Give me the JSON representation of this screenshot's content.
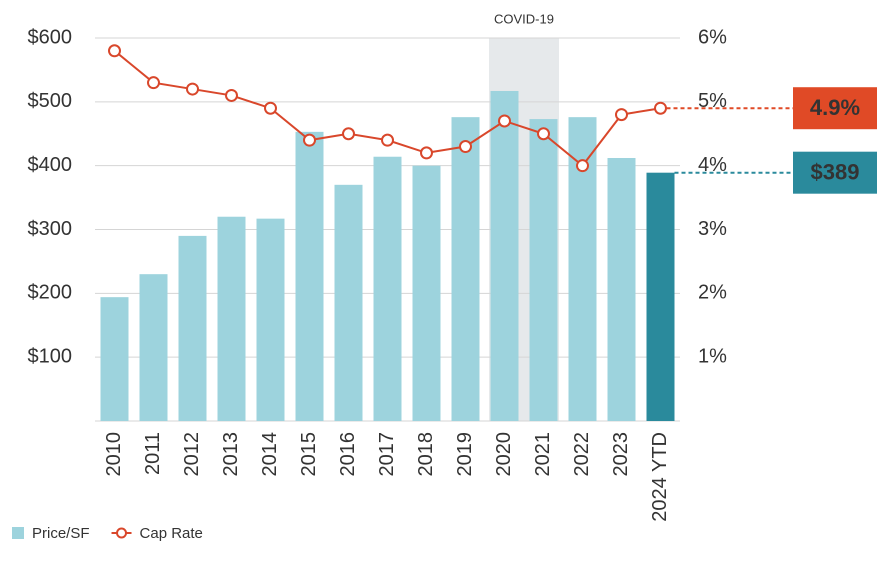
{
  "chart_data": {
    "type": "bar",
    "categories": [
      "2010",
      "2011",
      "2012",
      "2013",
      "2014",
      "2015",
      "2016",
      "2017",
      "2018",
      "2019",
      "2020",
      "2021",
      "2022",
      "2023",
      "2024 YTD"
    ],
    "series": [
      {
        "name": "Price/SF",
        "type": "bar",
        "axis": "y",
        "color": "#9dd3dd",
        "highlight_color": "#2a8a9c",
        "values": [
          194,
          230,
          290,
          320,
          317,
          453,
          370,
          414,
          400,
          476,
          517,
          473,
          476,
          412,
          389
        ],
        "value_labels": [
          null,
          null,
          null,
          null,
          null,
          null,
          null,
          null,
          null,
          null,
          null,
          null,
          null,
          null,
          "$389"
        ]
      },
      {
        "name": "Cap Rate",
        "type": "line",
        "axis": "y2",
        "color": "#d9472b",
        "label_color": "#e04a26",
        "values": [
          5.8,
          5.3,
          5.2,
          5.1,
          4.9,
          4.4,
          4.5,
          4.4,
          4.2,
          4.3,
          4.7,
          4.5,
          4.0,
          4.8,
          4.9
        ],
        "value_labels": [
          null,
          null,
          null,
          null,
          null,
          null,
          null,
          null,
          null,
          null,
          null,
          null,
          null,
          null,
          "4.9%"
        ]
      }
    ],
    "ylim": [
      0,
      600
    ],
    "yticks": [
      {
        "value": 100,
        "label": "$100"
      },
      {
        "value": 200,
        "label": "$200"
      },
      {
        "value": 300,
        "label": "$300"
      },
      {
        "value": 400,
        "label": "$400"
      },
      {
        "value": 500,
        "label": "$500"
      },
      {
        "value": 600,
        "label": "$600"
      }
    ],
    "y2lim": [
      0,
      6
    ],
    "y2ticks": [
      {
        "value": 1,
        "label": "1%"
      },
      {
        "value": 2,
        "label": "2%"
      },
      {
        "value": 3,
        "label": "3%"
      },
      {
        "value": 4,
        "label": "4%"
      },
      {
        "value": 5,
        "label": "5%"
      },
      {
        "value": 6,
        "label": "6%"
      }
    ],
    "grid": true,
    "annotations": [
      {
        "text": "COVID-19",
        "from": "2020",
        "to": "2021"
      }
    ],
    "legend": "bottom-left"
  }
}
